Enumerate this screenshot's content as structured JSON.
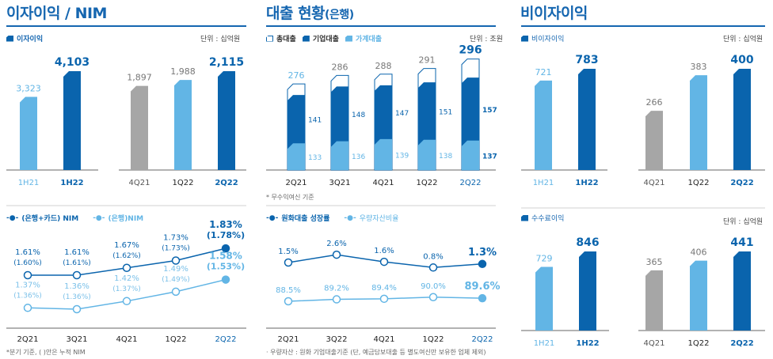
{
  "sections": {
    "nim_title": "이자이익 / NIM",
    "loan_title": "대출 현황",
    "loan_title_sub": "(은행)",
    "nonint_title": "비이자이익"
  },
  "colors": {
    "dark": "#0a64ad",
    "light": "#62b5e5",
    "gray": "#a6a6a6",
    "title": "#1566b0"
  },
  "chart_data": [
    {
      "type": "bar",
      "legend": "이자이익",
      "unit": "단위 : 십억원",
      "categories": [
        "1H21",
        "1H22",
        "4Q21",
        "1Q22",
        "2Q22"
      ],
      "values": [
        3323,
        4103,
        1897,
        1988,
        2115
      ],
      "value_labels": [
        "3,323",
        "4,103",
        "1,897",
        "1,988",
        "2,115"
      ],
      "bar_colors": [
        "#62b5e5",
        "#0a64ad",
        "#a6a6a6",
        "#62b5e5",
        "#0a64ad"
      ]
    },
    {
      "type": "line",
      "categories": [
        "2Q21",
        "3Q21",
        "4Q21",
        "1Q22",
        "2Q22"
      ],
      "series": [
        {
          "name": "(은행+카드) NIM",
          "color": "#0a64ad",
          "values": [
            1.61,
            1.61,
            1.67,
            1.73,
            1.83
          ],
          "cumulative": [
            1.6,
            1.61,
            1.62,
            1.73,
            1.78
          ]
        },
        {
          "name": "(은행)NIM",
          "color": "#62b5e5",
          "values": [
            1.37,
            1.36,
            1.42,
            1.49,
            1.58
          ],
          "cumulative": [
            1.36,
            1.36,
            1.37,
            1.49,
            1.53
          ]
        }
      ],
      "footnote": "*분기 기준, ( )안은 누적 NIM"
    },
    {
      "type": "bar",
      "stacked": true,
      "unit": "단위 : 조원",
      "categories": [
        "2Q21",
        "3Q21",
        "4Q21",
        "1Q22",
        "2Q22"
      ],
      "series": [
        {
          "name": "총대출",
          "values": [
            276,
            286,
            288,
            291,
            296
          ]
        },
        {
          "name": "기업대출",
          "color": "#0a64ad",
          "values": [
            141,
            148,
            147,
            151,
            157
          ]
        },
        {
          "name": "가계대출",
          "color": "#62b5e5",
          "values": [
            133,
            136,
            139,
            138,
            137
          ]
        }
      ],
      "footnote": "* 무수익여신 기준"
    },
    {
      "type": "line",
      "categories": [
        "2Q21",
        "3Q22",
        "4Q21",
        "1Q22",
        "2Q22"
      ],
      "series": [
        {
          "name": "원화대출 성장률",
          "color": "#0a64ad",
          "values": [
            1.5,
            2.6,
            1.6,
            0.8,
            1.3
          ],
          "labels": [
            "1.5%",
            "2.6%",
            "1.6%",
            "0.8%",
            "1.3%"
          ]
        },
        {
          "name": "우량자산비율",
          "color": "#62b5e5",
          "values": [
            88.5,
            89.2,
            89.4,
            90.0,
            89.6
          ],
          "labels": [
            "88.5%",
            "89.2%",
            "89.4%",
            "90.0%",
            "89.6%"
          ]
        }
      ],
      "footnote": "· 우량자산 : 원화 기업대출기준 (단, 예금담보대출 등 별도여신만 보유한 업체 제외)"
    },
    {
      "type": "bar",
      "legend": "비이자이익",
      "unit": "단위 : 십억원",
      "categories": [
        "1H21",
        "1H22",
        "4Q21",
        "1Q22",
        "2Q22"
      ],
      "values": [
        721,
        783,
        266,
        383,
        400
      ],
      "value_labels": [
        "721",
        "783",
        "266",
        "383",
        "400"
      ],
      "bar_colors": [
        "#62b5e5",
        "#0a64ad",
        "#a6a6a6",
        "#62b5e5",
        "#0a64ad"
      ]
    },
    {
      "type": "bar",
      "legend": "수수료이익",
      "unit": "단위 : 십억원",
      "categories": [
        "1H21",
        "1H22",
        "4Q21",
        "1Q22",
        "2Q22"
      ],
      "values": [
        729,
        846,
        365,
        406,
        441
      ],
      "value_labels": [
        "729",
        "846",
        "365",
        "406",
        "441"
      ],
      "bar_colors": [
        "#62b5e5",
        "#0a64ad",
        "#a6a6a6",
        "#62b5e5",
        "#0a64ad"
      ]
    }
  ]
}
